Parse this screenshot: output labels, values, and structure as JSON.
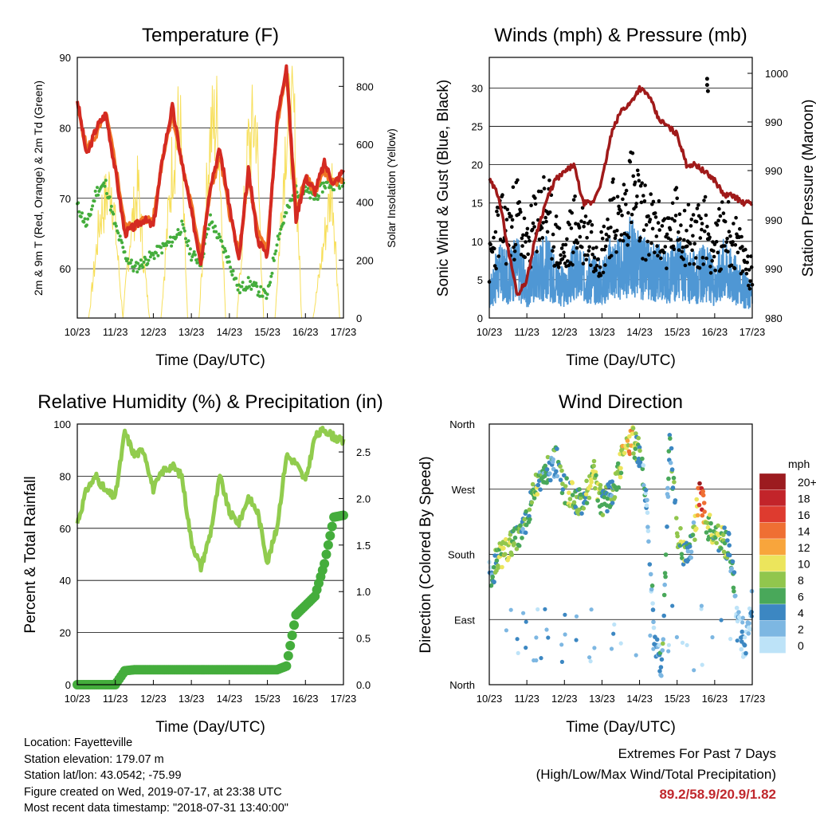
{
  "colors": {
    "t2m": "#d42a22",
    "t9m": "#f07525",
    "td": "#44ad3c",
    "solar": "#f7df5a",
    "gust": "#000000",
    "wind": "#4f97d4",
    "pressure": "#a01a1a",
    "rh": "#91cc4e",
    "rain": "#44ad3c",
    "extremes": "#c0282d"
  },
  "x_ticks": [
    "10/23",
    "11/23",
    "12/23",
    "13/23",
    "14/23",
    "15/23",
    "16/23",
    "17/23"
  ],
  "x_label": "Time (Day/UTC)",
  "legend": {
    "unit": "mph",
    "labels": [
      "20+",
      "18",
      "16",
      "14",
      "12",
      "10",
      "8",
      "6",
      "4",
      "2",
      "0"
    ],
    "colors": [
      "#9c1b1f",
      "#c2242a",
      "#de3b2f",
      "#ef6f33",
      "#f8a53c",
      "#ece55c",
      "#91c64d",
      "#49a85a",
      "#3c87c2",
      "#7db7e2",
      "#bde3f8"
    ]
  },
  "info": {
    "location": "Location: Fayetteville",
    "elevation": "Station elevation: 179.07 m",
    "latlon": "Station lat/lon: 43.0542; -75.99",
    "created": "Figure created on Wed, 2019-07-17, at 23:38 UTC",
    "recent": "Most recent data timestamp: \"2018-07-31 13:40:00\""
  },
  "extremes": {
    "title": "Extremes For Past 7 Days",
    "subtitle": "(High/Low/Max Wind/Total Precipitation)",
    "values": "89.2/58.9/20.9/1.82"
  },
  "chart_data": [
    {
      "type": "line",
      "title": "Temperature (F)",
      "xlabel": "Time (Day/UTC)",
      "ylabel": "2m & 9m T (Red, Orange) & 2m Td (Green)",
      "y2label": "Solar Insolation (Yellow)",
      "x": [
        0,
        0.25,
        0.5,
        0.75,
        1,
        1.25,
        1.5,
        1.75,
        2,
        2.25,
        2.5,
        2.75,
        3,
        3.25,
        3.5,
        3.75,
        4,
        4.25,
        4.5,
        4.75,
        5,
        5.25,
        5.5,
        5.75,
        6,
        6.25,
        6.5,
        6.75,
        7
      ],
      "ylim": [
        53,
        90
      ],
      "y_ticks": [
        60,
        70,
        80,
        90
      ],
      "y2lim": [
        0,
        900
      ],
      "y2_ticks": [
        0,
        200,
        400,
        600,
        800
      ],
      "series": [
        {
          "name": "2m T",
          "values": [
            84,
            76,
            80,
            82,
            74,
            65,
            66,
            67,
            66,
            76,
            83,
            75,
            68,
            61,
            72,
            77,
            69,
            61,
            74,
            64,
            62,
            81,
            89,
            67,
            73,
            71,
            75,
            72,
            74
          ]
        },
        {
          "name": "9m T",
          "values": [
            83,
            77,
            79,
            82,
            75,
            66,
            66,
            67,
            67,
            76,
            82,
            75,
            69,
            62,
            71,
            76,
            68,
            62,
            73,
            65,
            63,
            80,
            88,
            68,
            73,
            71,
            74,
            72,
            73
          ]
        },
        {
          "name": "2m Td",
          "values": [
            69,
            66,
            71,
            72,
            66,
            62,
            60,
            61,
            62,
            63,
            64,
            66,
            62,
            61,
            67,
            64,
            61,
            57,
            58,
            57,
            56,
            64,
            68,
            71,
            71,
            70,
            72,
            72,
            72
          ]
        },
        {
          "name": "Solar",
          "x": [
            0,
            0.3,
            0.6,
            0.9,
            1.2,
            1.4,
            1.6,
            1.75,
            1.9,
            2.2,
            2.5,
            2.7,
            2.9,
            3.2,
            3.5,
            3.7,
            3.9,
            4.2,
            4.5,
            4.7,
            4.9,
            5.2,
            5.5,
            5.7,
            5.9,
            6.2,
            6.5,
            6.7,
            6.9,
            7
          ],
          "values": [
            0,
            0,
            450,
            600,
            0,
            380,
            580,
            250,
            0,
            0,
            700,
            880,
            0,
            0,
            820,
            890,
            0,
            0,
            760,
            880,
            0,
            0,
            850,
            880,
            0,
            0,
            350,
            600,
            0,
            0
          ]
        }
      ]
    },
    {
      "type": "line",
      "title": "Winds (mph) & Pressure (mb)",
      "xlabel": "Time (Day/UTC)",
      "ylabel": "Sonic Wind & Gust (Blue, Black)",
      "y2label": "Station Pressure (Maroon)",
      "x": [
        0,
        0.25,
        0.5,
        0.75,
        1,
        1.25,
        1.5,
        1.75,
        2,
        2.25,
        2.5,
        2.75,
        3,
        3.25,
        3.5,
        3.75,
        4,
        4.25,
        4.5,
        4.75,
        5,
        5.25,
        5.5,
        5.75,
        6,
        6.25,
        6.5,
        6.75,
        7
      ],
      "ylim": [
        0,
        34
      ],
      "y_ticks": [
        0,
        5,
        10,
        15,
        20,
        25,
        30
      ],
      "y2_tick_labels": [
        "980",
        "990",
        "990",
        "990",
        "990",
        "1000",
        "1000"
      ],
      "series": [
        {
          "name": "Gust",
          "values": [
            8,
            14,
            13,
            16,
            10,
            15,
            17,
            12,
            9,
            14,
            13,
            12,
            10,
            16,
            14,
            20,
            16,
            14,
            13,
            12,
            15,
            13,
            12,
            14,
            10,
            14,
            12,
            9,
            7
          ]
        },
        {
          "name": "Wind",
          "values": [
            4,
            8,
            7,
            9,
            5,
            8,
            9,
            7,
            5,
            8,
            7,
            7,
            6,
            9,
            8,
            11,
            9,
            8,
            8,
            7,
            9,
            7,
            7,
            8,
            6,
            9,
            7,
            5,
            4
          ]
        },
        {
          "name": "Pressure",
          "values": [
            18,
            16,
            9,
            3,
            5,
            11,
            15,
            18,
            19,
            20,
            15,
            15,
            18,
            24,
            27,
            28,
            30,
            29,
            26,
            25,
            24,
            20,
            20,
            19,
            18,
            16,
            16,
            15,
            15
          ]
        }
      ]
    },
    {
      "type": "line",
      "title": "Relative Humidity (%) & Precipitation (in)",
      "xlabel": "Time (Day/UTC)",
      "ylabel": "Percent & Total Rainfall",
      "x": [
        0,
        0.25,
        0.5,
        0.75,
        1,
        1.25,
        1.5,
        1.75,
        2,
        2.25,
        2.5,
        2.75,
        3,
        3.25,
        3.5,
        3.75,
        4,
        4.25,
        4.5,
        4.75,
        5,
        5.25,
        5.5,
        5.75,
        6,
        6.25,
        6.5,
        6.75,
        7
      ],
      "ylim": [
        0,
        100
      ],
      "y_ticks": [
        0,
        20,
        40,
        60,
        80,
        100
      ],
      "y2lim": [
        0,
        2.8
      ],
      "y2_ticks": [
        0.0,
        0.5,
        1.0,
        1.5,
        2.0,
        2.5
      ],
      "series": [
        {
          "name": "RH",
          "values": [
            62,
            75,
            80,
            74,
            72,
            97,
            88,
            90,
            75,
            82,
            84,
            80,
            55,
            45,
            58,
            80,
            66,
            62,
            72,
            66,
            47,
            60,
            88,
            85,
            78,
            95,
            98,
            95,
            93
          ]
        },
        {
          "name": "Total Rainfall",
          "values": [
            0,
            0,
            0,
            0,
            0,
            0.15,
            0.16,
            0.16,
            0.16,
            0.16,
            0.16,
            0.16,
            0.16,
            0.16,
            0.16,
            0.16,
            0.16,
            0.16,
            0.16,
            0.16,
            0.16,
            0.16,
            0.2,
            0.75,
            0.85,
            0.95,
            1.3,
            1.8,
            1.82
          ]
        }
      ]
    },
    {
      "type": "scatter",
      "title": "Wind Direction",
      "xlabel": "Time (Day/UTC)",
      "ylabel": "Direction (Colored By Speed)",
      "y_tick_labels": [
        "North",
        "East",
        "South",
        "West",
        "North"
      ],
      "ylim": [
        0,
        360
      ],
      "x": [
        0.05,
        0.2,
        0.35,
        0.5,
        0.7,
        0.9,
        1.2,
        1.4,
        1.6,
        1.8,
        2.0,
        2.2,
        2.4,
        2.6,
        2.8,
        3.0,
        3.2,
        3.4,
        3.6,
        3.8,
        4.0,
        4.2,
        4.4,
        4.6,
        4.8,
        5.0,
        5.2,
        5.4,
        5.6,
        5.8,
        6.0,
        6.2,
        6.4,
        6.6,
        6.8,
        7.0
      ],
      "y": [
        150,
        170,
        180,
        190,
        200,
        210,
        270,
        280,
        300,
        310,
        270,
        260,
        250,
        270,
        290,
        250,
        260,
        280,
        330,
        340,
        320,
        250,
        60,
        20,
        340,
        210,
        180,
        190,
        270,
        220,
        210,
        200,
        190,
        100,
        40,
        120
      ],
      "speeds": [
        4,
        8,
        10,
        9,
        7,
        6,
        8,
        6,
        5,
        6,
        8,
        9,
        6,
        8,
        11,
        7,
        5,
        9,
        11,
        12,
        6,
        3,
        4,
        5,
        6,
        7,
        8,
        4,
        18,
        9,
        8,
        9,
        6,
        2,
        3,
        2
      ]
    }
  ]
}
